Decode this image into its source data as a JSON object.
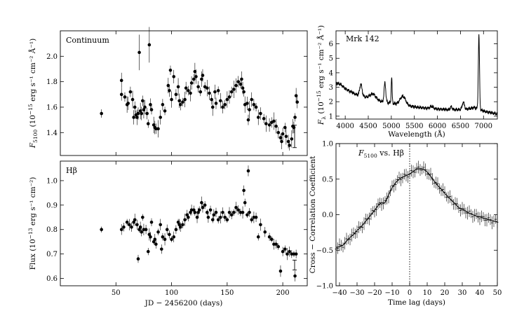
{
  "chart_data": [
    {
      "id": "continuum",
      "type": "scatter",
      "panel_label": "Continuum",
      "ylabel_text": "F",
      "ylabel_sub": "5100",
      "ylabel_rest": " (10",
      "ylabel_exp": "−15",
      "ylabel_units": " erg s",
      "ylabel_tail": "⁻¹ cm⁻² Å⁻¹)",
      "xlim": [
        0,
        222
      ],
      "ylim": [
        1.22,
        2.2
      ],
      "xticks": [
        50,
        100,
        150,
        200
      ],
      "yticks": [
        1.4,
        1.6,
        1.8,
        2.0
      ],
      "ytick_labels": [
        "1.4",
        "1.6",
        "1.8",
        "2.0"
      ],
      "typical_error": 0.055,
      "points": [
        [
          37,
          1.55
        ],
        [
          55,
          1.81
        ],
        [
          55,
          1.7
        ],
        [
          58,
          1.68
        ],
        [
          60,
          1.62
        ],
        [
          61,
          1.63
        ],
        [
          63,
          1.72
        ],
        [
          65,
          1.66
        ],
        [
          66,
          1.52
        ],
        [
          67,
          1.6
        ],
        [
          68,
          1.54
        ],
        [
          69,
          1.52
        ],
        [
          70,
          1.55
        ],
        [
          71,
          2.03
        ],
        [
          72,
          1.57
        ],
        [
          73,
          1.55
        ],
        [
          74,
          1.65
        ],
        [
          75,
          1.58
        ],
        [
          76,
          1.6
        ],
        [
          78,
          1.55
        ],
        [
          79,
          1.47
        ],
        [
          80,
          2.09
        ],
        [
          81,
          1.62
        ],
        [
          82,
          1.58
        ],
        [
          84,
          1.46
        ],
        [
          85,
          1.44
        ],
        [
          86,
          1.43
        ],
        [
          88,
          1.43
        ],
        [
          90,
          1.52
        ],
        [
          92,
          1.62
        ],
        [
          94,
          1.57
        ],
        [
          97,
          1.77
        ],
        [
          98,
          1.73
        ],
        [
          99,
          1.89
        ],
        [
          100,
          1.66
        ],
        [
          102,
          1.84
        ],
        [
          104,
          1.7
        ],
        [
          106,
          1.76
        ],
        [
          107,
          1.65
        ],
        [
          108,
          1.62
        ],
        [
          110,
          1.64
        ],
        [
          112,
          1.66
        ],
        [
          113,
          1.75
        ],
        [
          115,
          1.73
        ],
        [
          117,
          1.71
        ],
        [
          118,
          1.79
        ],
        [
          120,
          1.82
        ],
        [
          121,
          1.88
        ],
        [
          122,
          1.84
        ],
        [
          124,
          1.76
        ],
        [
          126,
          1.72
        ],
        [
          127,
          1.82
        ],
        [
          128,
          1.85
        ],
        [
          130,
          1.76
        ],
        [
          132,
          1.75
        ],
        [
          134,
          1.71
        ],
        [
          136,
          1.66
        ],
        [
          137,
          1.6
        ],
        [
          139,
          1.72
        ],
        [
          140,
          1.63
        ],
        [
          142,
          1.73
        ],
        [
          144,
          1.65
        ],
        [
          146,
          1.6
        ],
        [
          148,
          1.62
        ],
        [
          150,
          1.66
        ],
        [
          152,
          1.68
        ],
        [
          154,
          1.72
        ],
        [
          156,
          1.74
        ],
        [
          158,
          1.77
        ],
        [
          160,
          1.8
        ],
        [
          162,
          1.78
        ],
        [
          163,
          1.82
        ],
        [
          164,
          1.75
        ],
        [
          165,
          1.72
        ],
        [
          166,
          1.62
        ],
        [
          168,
          1.63
        ],
        [
          169,
          1.5
        ],
        [
          170,
          1.58
        ],
        [
          172,
          1.66
        ],
        [
          174,
          1.62
        ],
        [
          176,
          1.6
        ],
        [
          178,
          1.52
        ],
        [
          180,
          1.55
        ],
        [
          183,
          1.51
        ],
        [
          185,
          1.47
        ],
        [
          188,
          1.46
        ],
        [
          190,
          1.48
        ],
        [
          192,
          1.49
        ],
        [
          194,
          1.45
        ],
        [
          196,
          1.4
        ],
        [
          198,
          1.36
        ],
        [
          199,
          1.33
        ],
        [
          200,
          1.39
        ],
        [
          202,
          1.44
        ],
        [
          203,
          1.37
        ],
        [
          205,
          1.33
        ],
        [
          206,
          1.3
        ],
        [
          208,
          1.35
        ],
        [
          209,
          1.45
        ],
        [
          210,
          1.44
        ],
        [
          211,
          1.52
        ],
        [
          212,
          1.69
        ],
        [
          213,
          1.64
        ]
      ]
    },
    {
      "id": "hbeta",
      "type": "scatter",
      "panel_label": "Hβ",
      "ylabel_text": "Flux (10",
      "ylabel_exp": "−13",
      "ylabel_tail": " erg s⁻¹ cm⁻²)",
      "xlabel": "JD − 2456200 (days)",
      "xlim": [
        0,
        222
      ],
      "ylim": [
        0.57,
        1.08
      ],
      "xticks": [
        50,
        100,
        150,
        200
      ],
      "xtick_labels": [
        "50",
        "100",
        "150",
        "200"
      ],
      "yticks": [
        0.6,
        0.7,
        0.8,
        0.9,
        1.0
      ],
      "ytick_labels": [
        "0.6",
        "0.7",
        "0.8",
        "0.9",
        "1.0"
      ],
      "typical_error": 0.02,
      "points": [
        [
          37,
          0.8
        ],
        [
          55,
          0.8
        ],
        [
          57,
          0.81
        ],
        [
          60,
          0.83
        ],
        [
          62,
          0.82
        ],
        [
          64,
          0.81
        ],
        [
          66,
          0.83
        ],
        [
          67,
          0.84
        ],
        [
          69,
          0.82
        ],
        [
          70,
          0.68
        ],
        [
          71,
          0.8
        ],
        [
          72,
          0.81
        ],
        [
          73,
          0.79
        ],
        [
          74,
          0.85
        ],
        [
          75,
          0.8
        ],
        [
          77,
          0.8
        ],
        [
          79,
          0.71
        ],
        [
          80,
          0.78
        ],
        [
          81,
          0.77
        ],
        [
          82,
          0.83
        ],
        [
          84,
          0.75
        ],
        [
          85,
          0.76
        ],
        [
          86,
          0.74
        ],
        [
          88,
          0.79
        ],
        [
          90,
          0.82
        ],
        [
          91,
          0.72
        ],
        [
          92,
          0.77
        ],
        [
          94,
          0.76
        ],
        [
          96,
          0.8
        ],
        [
          98,
          0.78
        ],
        [
          100,
          0.76
        ],
        [
          102,
          0.77
        ],
        [
          104,
          0.8
        ],
        [
          106,
          0.83
        ],
        [
          107,
          0.82
        ],
        [
          108,
          0.81
        ],
        [
          110,
          0.82
        ],
        [
          112,
          0.84
        ],
        [
          114,
          0.86
        ],
        [
          115,
          0.85
        ],
        [
          117,
          0.87
        ],
        [
          118,
          0.88
        ],
        [
          120,
          0.88
        ],
        [
          121,
          0.87
        ],
        [
          123,
          0.85
        ],
        [
          124,
          0.87
        ],
        [
          125,
          0.88
        ],
        [
          127,
          0.91
        ],
        [
          128,
          0.89
        ],
        [
          130,
          0.9
        ],
        [
          132,
          0.87
        ],
        [
          133,
          0.85
        ],
        [
          135,
          0.88
        ],
        [
          137,
          0.84
        ],
        [
          138,
          0.86
        ],
        [
          140,
          0.87
        ],
        [
          142,
          0.84
        ],
        [
          144,
          0.85
        ],
        [
          146,
          0.87
        ],
        [
          148,
          0.85
        ],
        [
          150,
          0.84
        ],
        [
          152,
          0.87
        ],
        [
          154,
          0.86
        ],
        [
          156,
          0.87
        ],
        [
          158,
          0.89
        ],
        [
          160,
          0.88
        ],
        [
          162,
          0.87
        ],
        [
          164,
          0.87
        ],
        [
          165,
          0.96
        ],
        [
          166,
          0.91
        ],
        [
          168,
          0.86
        ],
        [
          169,
          1.04
        ],
        [
          170,
          0.87
        ],
        [
          172,
          0.84
        ],
        [
          174,
          0.85
        ],
        [
          176,
          0.85
        ],
        [
          178,
          0.77
        ],
        [
          180,
          0.82
        ],
        [
          184,
          0.79
        ],
        [
          188,
          0.77
        ],
        [
          190,
          0.76
        ],
        [
          192,
          0.74
        ],
        [
          194,
          0.74
        ],
        [
          196,
          0.73
        ],
        [
          198,
          0.63
        ],
        [
          200,
          0.71
        ],
        [
          202,
          0.72
        ],
        [
          204,
          0.7
        ],
        [
          206,
          0.71
        ],
        [
          208,
          0.7
        ],
        [
          210,
          0.7
        ],
        [
          211,
          0.61
        ],
        [
          212,
          0.7
        ]
      ]
    },
    {
      "id": "spectrum",
      "type": "line",
      "panel_label": "Mrk 142",
      "ylabel_text": "F",
      "ylabel_sub": "λ",
      "ylabel_rest": " (10",
      "ylabel_exp": "−15",
      "ylabel_tail": " erg s⁻¹ cm⁻² Å⁻¹)",
      "xlabel": "Wavelength (Å)",
      "xlim": [
        3800,
        7300
      ],
      "ylim": [
        0.8,
        6.9
      ],
      "xticks": [
        4000,
        4500,
        5000,
        5500,
        6000,
        6500,
        7000
      ],
      "xtick_labels": [
        "4000",
        "4500",
        "5000",
        "5500",
        "6000",
        "6500",
        "7000"
      ],
      "yticks": [
        1,
        2,
        3,
        4,
        5,
        6
      ],
      "ytick_labels": [
        "1",
        "2",
        "3",
        "4",
        "5",
        "6"
      ],
      "continuum_anchors": [
        [
          3800,
          3.3
        ],
        [
          3900,
          3.2
        ],
        [
          4000,
          2.9
        ],
        [
          4200,
          2.55
        ],
        [
          4400,
          2.35
        ],
        [
          4600,
          2.2
        ],
        [
          4800,
          2.0
        ],
        [
          5000,
          1.9
        ],
        [
          5200,
          1.8
        ],
        [
          5400,
          1.7
        ],
        [
          5600,
          1.6
        ],
        [
          5800,
          1.55
        ],
        [
          6000,
          1.5
        ],
        [
          6200,
          1.45
        ],
        [
          6400,
          1.45
        ],
        [
          6600,
          1.45
        ],
        [
          6800,
          1.6
        ],
        [
          7000,
          1.35
        ],
        [
          7300,
          1.15
        ]
      ],
      "emission_lines": [
        [
          4340,
          0.8,
          25
        ],
        [
          4600,
          0.35,
          60
        ],
        [
          4861,
          1.35,
          18
        ],
        [
          5007,
          1.8,
          10
        ],
        [
          5250,
          0.6,
          60
        ],
        [
          5876,
          0.15,
          30
        ],
        [
          6300,
          0.2,
          20
        ],
        [
          6563,
          0.5,
          25
        ],
        [
          6900,
          5.1,
          13
        ]
      ]
    },
    {
      "id": "ccf",
      "type": "line",
      "panel_label_prefix": "F",
      "panel_label_sub": "5100",
      "panel_label_rest": " vs. Hβ",
      "ylabel": "Cross − Correlation Coefficient",
      "xlabel": "Time lag (days)",
      "xlim": [
        -42,
        50
      ],
      "ylim": [
        -1.0,
        1.0
      ],
      "xticks": [
        -40,
        -30,
        -20,
        -10,
        0,
        10,
        20,
        30,
        40,
        50
      ],
      "xtick_labels": [
        "−40",
        "−30",
        "−20",
        "−10",
        "0",
        "10",
        "20",
        "30",
        "40",
        "50"
      ],
      "yticks": [
        -1.0,
        -0.5,
        0.0,
        0.5,
        1.0
      ],
      "ytick_labels": [
        "−1.0",
        "−0.5",
        "0.0",
        "0.5",
        "1.0"
      ],
      "zero_lag_line": 0,
      "curve": [
        [
          -42,
          -0.46
        ],
        [
          -40,
          -0.45
        ],
        [
          -38,
          -0.43
        ],
        [
          -36,
          -0.37
        ],
        [
          -34,
          -0.32
        ],
        [
          -32,
          -0.28
        ],
        [
          -30,
          -0.22
        ],
        [
          -28,
          -0.18
        ],
        [
          -26,
          -0.12
        ],
        [
          -24,
          -0.06
        ],
        [
          -22,
          0.0
        ],
        [
          -20,
          0.06
        ],
        [
          -18,
          0.13
        ],
        [
          -16,
          0.17
        ],
        [
          -14,
          0.17
        ],
        [
          -12,
          0.28
        ],
        [
          -10,
          0.38
        ],
        [
          -8,
          0.45
        ],
        [
          -6,
          0.5
        ],
        [
          -4,
          0.53
        ],
        [
          -2,
          0.55
        ],
        [
          0,
          0.57
        ],
        [
          2,
          0.61
        ],
        [
          4,
          0.64
        ],
        [
          6,
          0.65
        ],
        [
          8,
          0.64
        ],
        [
          10,
          0.6
        ],
        [
          12,
          0.54
        ],
        [
          14,
          0.47
        ],
        [
          16,
          0.41
        ],
        [
          18,
          0.36
        ],
        [
          20,
          0.3
        ],
        [
          22,
          0.25
        ],
        [
          24,
          0.2
        ],
        [
          26,
          0.15
        ],
        [
          28,
          0.1
        ],
        [
          30,
          0.07
        ],
        [
          32,
          0.05
        ],
        [
          34,
          0.02
        ],
        [
          36,
          0.0
        ],
        [
          38,
          -0.02
        ],
        [
          40,
          -0.03
        ],
        [
          42,
          -0.05
        ],
        [
          44,
          -0.06
        ],
        [
          46,
          -0.08
        ],
        [
          48,
          -0.09
        ],
        [
          50,
          -0.1
        ]
      ]
    }
  ]
}
